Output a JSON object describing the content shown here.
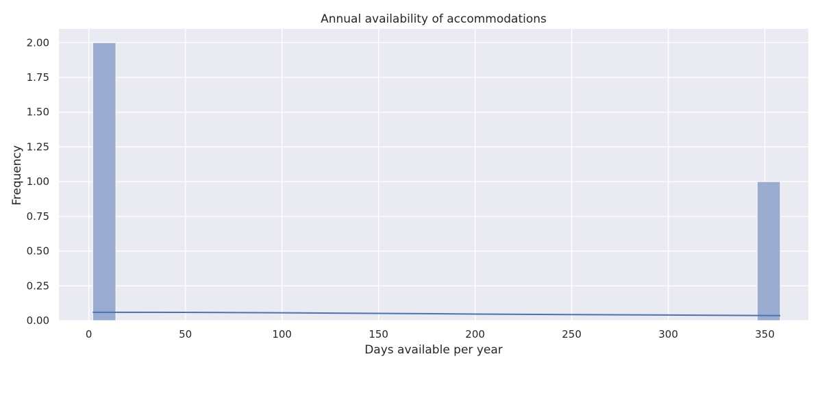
{
  "chart_data": {
    "type": "bar",
    "subtype": "histogram",
    "title": "Annual availability of accommodations",
    "xlabel": "Days available per year",
    "ylabel": "Frequency",
    "xlim": [
      -15.5,
      372.5
    ],
    "ylim": [
      0,
      2.1
    ],
    "xticks": [
      0,
      50,
      100,
      150,
      200,
      250,
      300,
      350
    ],
    "yticks": [
      0.0,
      0.25,
      0.5,
      0.75,
      1.0,
      1.25,
      1.5,
      1.75,
      2.0
    ],
    "xtick_labels": [
      "0",
      "50",
      "100",
      "150",
      "200",
      "250",
      "300",
      "350"
    ],
    "ytick_labels": [
      "0.00",
      "0.25",
      "0.50",
      "0.75",
      "1.00",
      "1.25",
      "1.50",
      "1.75",
      "2.00"
    ],
    "bins": [
      {
        "x0": 2,
        "x1": 14,
        "count": 2
      },
      {
        "x0": 346,
        "x1": 358,
        "count": 1
      }
    ],
    "kde": {
      "x": [
        2,
        50,
        100,
        150,
        200,
        250,
        300,
        358
      ],
      "y": [
        0.06,
        0.059,
        0.056,
        0.052,
        0.047,
        0.043,
        0.04,
        0.036
      ]
    },
    "grid": true,
    "colors": {
      "background": "#eaeaf2",
      "grid": "#ffffff",
      "bar": "#9aadd0",
      "line": "#4c72b0"
    }
  }
}
